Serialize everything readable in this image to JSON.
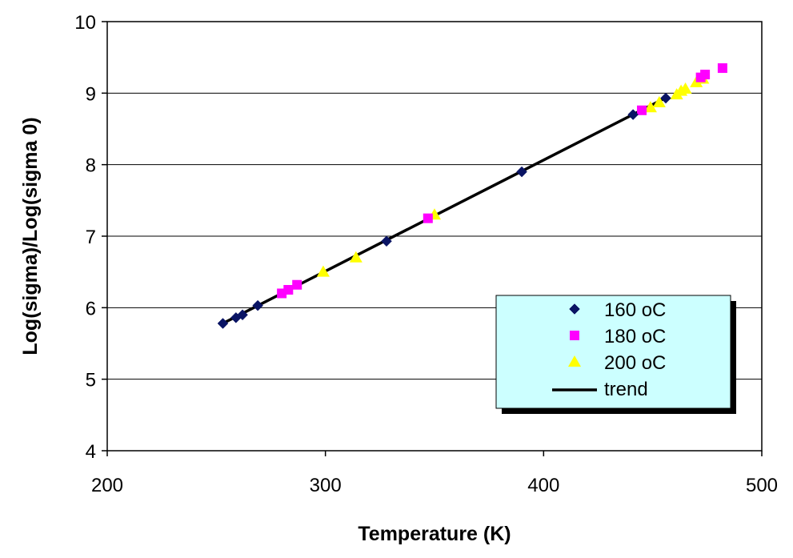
{
  "chart_data": {
    "type": "scatter",
    "title": "",
    "xlabel": "Temperature (K)",
    "ylabel": "Log(sigma)/Log(sigma 0)",
    "xlim": [
      200,
      500
    ],
    "ylim": [
      4,
      10
    ],
    "xticks": [
      200,
      300,
      400,
      500
    ],
    "yticks": [
      4,
      5,
      6,
      7,
      8,
      9,
      10
    ],
    "grid": "horizontal",
    "legend_position": "bottom-right",
    "series": [
      {
        "name": "160 oC",
        "marker": "diamond",
        "color": "#0a1464",
        "points": [
          [
            253,
            5.78
          ],
          [
            259,
            5.86
          ],
          [
            262,
            5.9
          ],
          [
            269,
            6.03
          ],
          [
            328,
            6.93
          ],
          [
            390,
            7.9
          ],
          [
            441,
            8.7
          ],
          [
            456,
            8.93
          ]
        ]
      },
      {
        "name": "180 oC",
        "marker": "square",
        "color": "#ff00ff",
        "points": [
          [
            280,
            6.2
          ],
          [
            283,
            6.25
          ],
          [
            287,
            6.32
          ],
          [
            347,
            7.25
          ],
          [
            445,
            8.76
          ],
          [
            472,
            9.22
          ],
          [
            474,
            9.26
          ],
          [
            482,
            9.35
          ]
        ]
      },
      {
        "name": "200 oC",
        "marker": "triangle",
        "color": "#ffff00",
        "points": [
          [
            299,
            6.5
          ],
          [
            314,
            6.7
          ],
          [
            350,
            7.3
          ],
          [
            449,
            8.8
          ],
          [
            453,
            8.87
          ],
          [
            461,
            8.98
          ],
          [
            463,
            9.03
          ],
          [
            465,
            9.06
          ],
          [
            470,
            9.15
          ],
          [
            473,
            9.2
          ]
        ]
      },
      {
        "name": "trend",
        "marker": "line",
        "color": "#000000",
        "points": [
          [
            253,
            5.78
          ],
          [
            457,
            8.95
          ]
        ]
      }
    ]
  }
}
